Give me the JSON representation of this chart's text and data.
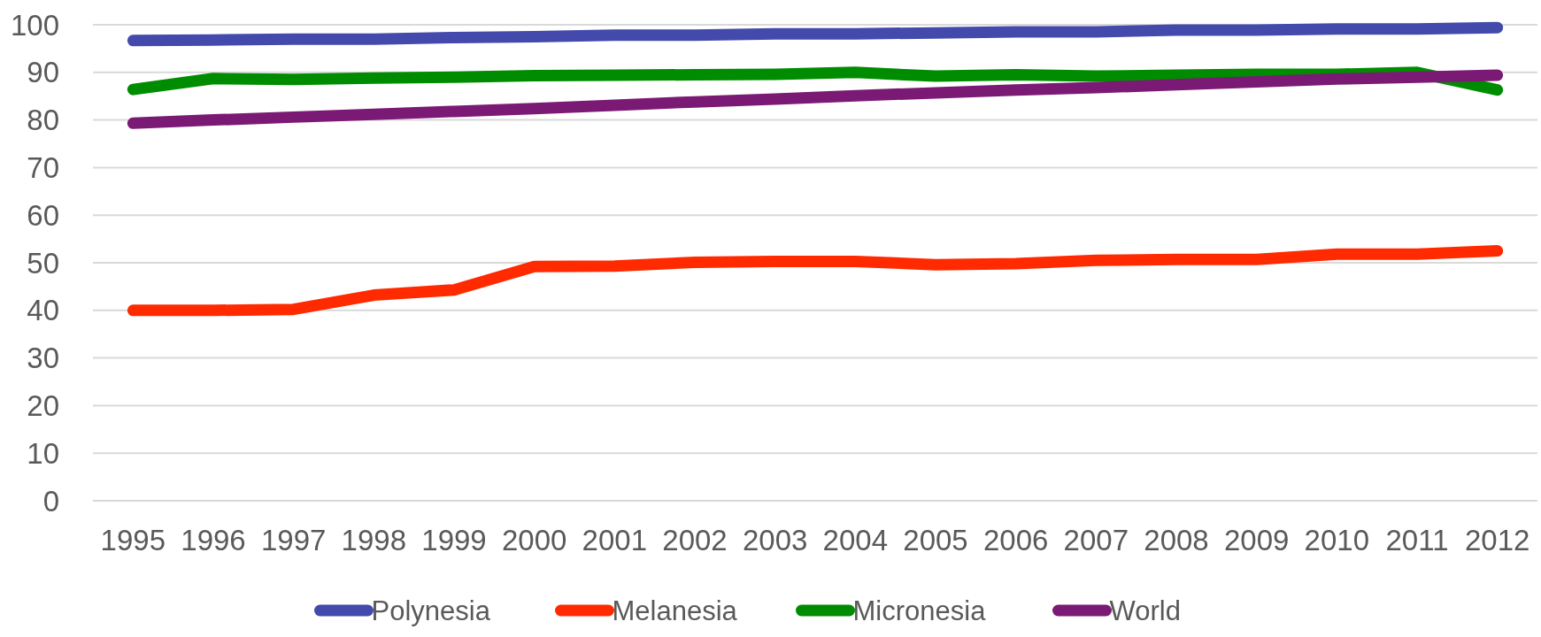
{
  "chart_data": {
    "type": "line",
    "categories": [
      "1995",
      "1996",
      "1997",
      "1998",
      "1999",
      "2000",
      "2001",
      "2002",
      "2003",
      "2004",
      "2005",
      "2006",
      "2007",
      "2008",
      "2009",
      "2010",
      "2011",
      "2012"
    ],
    "series": [
      {
        "name": "Polynesia",
        "color": "#434aac",
        "values": [
          96.7,
          96.8,
          97.0,
          97.0,
          97.3,
          97.5,
          97.8,
          97.8,
          98.1,
          98.1,
          98.3,
          98.5,
          98.5,
          98.9,
          98.9,
          99.1,
          99.1,
          99.4
        ]
      },
      {
        "name": "Melanesia",
        "color": "#ff2a00",
        "values": [
          40.0,
          40.0,
          40.2,
          43.2,
          44.3,
          49.2,
          49.3,
          50.1,
          50.3,
          50.3,
          49.6,
          49.8,
          50.5,
          50.7,
          50.7,
          51.8,
          51.8,
          52.5
        ]
      },
      {
        "name": "Micronesia",
        "color": "#008c00",
        "values": [
          86.4,
          88.7,
          88.5,
          88.8,
          89.0,
          89.3,
          89.4,
          89.5,
          89.6,
          90.0,
          89.2,
          89.5,
          89.2,
          89.4,
          89.6,
          89.6,
          90.0,
          86.3
        ]
      },
      {
        "name": "World",
        "color": "#7a1a74",
        "values": [
          79.3,
          80.0,
          80.6,
          81.2,
          81.8,
          82.4,
          83.1,
          83.8,
          84.4,
          85.1,
          85.7,
          86.3,
          86.8,
          87.4,
          88.0,
          88.6,
          89.0,
          89.4
        ]
      }
    ],
    "ylim": [
      0,
      100
    ],
    "yticks": [
      0,
      10,
      20,
      30,
      40,
      50,
      60,
      70,
      80,
      90,
      100
    ],
    "grid": "y",
    "legend": "bottom",
    "marker": "none",
    "line_style": "solid"
  }
}
